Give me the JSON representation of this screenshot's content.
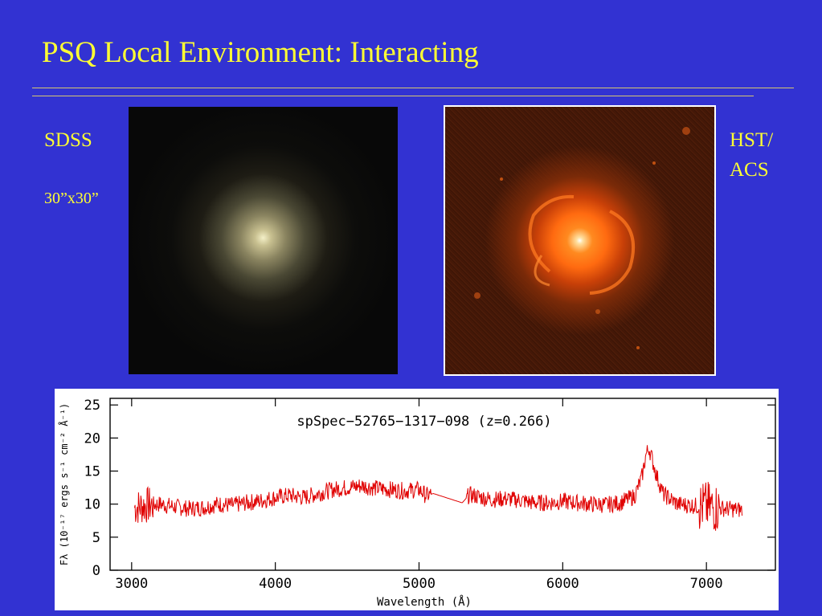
{
  "slide": {
    "title": "PSQ Local Environment: Interacting",
    "left_label": "SDSS",
    "left_sublabel": "30”x30”",
    "right_label_line1": "HST/",
    "right_label_line2": "ACS"
  },
  "colors": {
    "background": "#3232d2",
    "text": "#ffff33",
    "spectrum": "#e00000"
  },
  "chart_data": {
    "type": "line",
    "title": "spSpec−52765−1317−098 (z=0.266)",
    "xlabel": "Wavelength (Å)",
    "ylabel": "Fλ (10⁻¹⁷ ergs s⁻¹ cm⁻² Å⁻¹)",
    "xlim": [
      2850,
      7480
    ],
    "ylim": [
      0,
      26
    ],
    "xticks": [
      3000,
      4000,
      5000,
      6000,
      7000
    ],
    "yticks": [
      0,
      5,
      10,
      15,
      20,
      25
    ],
    "grid": false,
    "series": [
      {
        "x": [
          3020,
          3100,
          3200,
          3300,
          3400,
          3500,
          3600,
          3700,
          3800,
          3900,
          4000,
          4100,
          4200,
          4300,
          4400,
          4500,
          4600,
          4700,
          4800,
          4900,
          5000,
          5050,
          5100,
          5300,
          5350,
          5400,
          5500,
          5600,
          5700,
          5800,
          5900,
          6000,
          6100,
          6200,
          6300,
          6400,
          6500,
          6550,
          6580,
          6600,
          6620,
          6650,
          6700,
          6800,
          6900,
          7000,
          7100,
          7200,
          7250
        ],
        "y": [
          9.5,
          9.8,
          10.0,
          9.6,
          9.3,
          9.5,
          10.0,
          9.8,
          10.2,
          10.5,
          11.0,
          11.3,
          11.0,
          11.6,
          12.2,
          12.5,
          12.8,
          12.4,
          12.2,
          12.0,
          12.2,
          11.3,
          11.6,
          10.2,
          11.4,
          11.2,
          10.7,
          10.8,
          10.6,
          10.2,
          10.2,
          10.4,
          10.2,
          10.0,
          9.9,
          10.2,
          11.2,
          14.0,
          17.5,
          18.5,
          17.0,
          14.5,
          11.5,
          10.0,
          9.8,
          9.6,
          9.4,
          9.2,
          9.1
        ]
      }
    ]
  }
}
